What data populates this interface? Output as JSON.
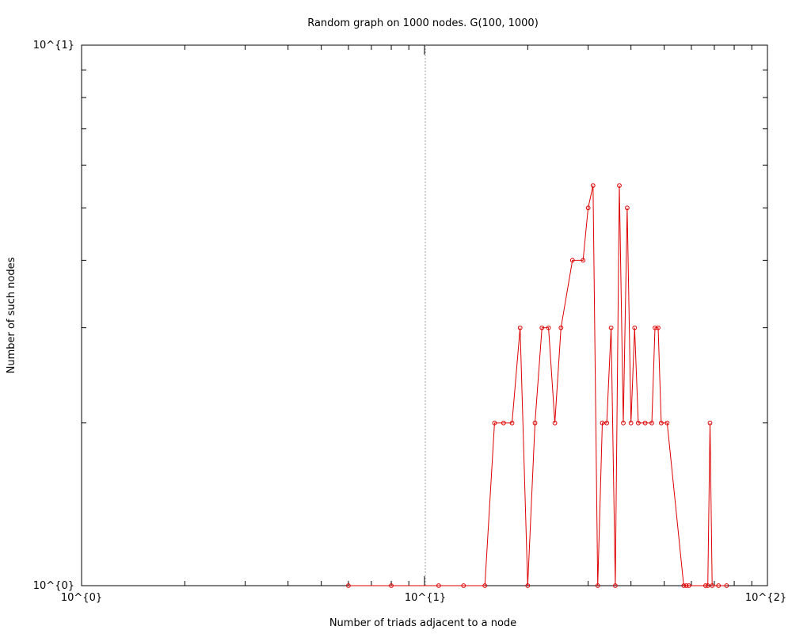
{
  "chart_data": {
    "type": "line",
    "title": "Random graph on 1000 nodes. G(100, 1000)",
    "xlabel": "Number of triads adjacent to a node",
    "ylabel": "Number of such nodes",
    "xscale": "log",
    "yscale": "log",
    "xlim": [
      1,
      100
    ],
    "ylim": [
      1,
      10
    ],
    "x_tick_labels": [
      "10^{0}",
      "10^{1}",
      "10^{2}"
    ],
    "y_tick_labels": [
      "10^{0}",
      "10^{1}"
    ],
    "grid": "vertical dotted line at x = 10",
    "series": [
      {
        "color": "#dd0000",
        "marker": "circle",
        "points": [
          [
            6,
            1
          ],
          [
            8,
            1
          ],
          [
            11,
            1
          ],
          [
            13,
            1
          ],
          [
            15,
            1
          ],
          [
            16,
            2
          ],
          [
            17,
            2
          ],
          [
            18,
            2
          ],
          [
            19,
            3
          ],
          [
            20,
            1
          ],
          [
            21,
            2
          ],
          [
            22,
            3
          ],
          [
            23,
            3
          ],
          [
            24,
            2
          ],
          [
            25,
            3
          ],
          [
            27,
            4
          ],
          [
            29,
            4
          ],
          [
            30,
            5
          ],
          [
            31,
            5.5
          ],
          [
            32,
            1
          ],
          [
            33,
            2
          ],
          [
            34,
            2
          ],
          [
            35,
            3
          ],
          [
            36,
            1
          ],
          [
            37,
            5.5
          ],
          [
            38,
            2
          ],
          [
            39,
            5
          ],
          [
            40,
            2
          ],
          [
            41,
            3
          ],
          [
            42,
            2
          ],
          [
            44,
            2
          ],
          [
            46,
            2
          ],
          [
            47,
            3
          ],
          [
            48,
            3
          ],
          [
            49,
            2
          ],
          [
            51,
            2
          ],
          [
            57,
            1
          ],
          [
            58,
            1
          ],
          [
            59,
            1
          ],
          [
            66,
            1
          ],
          [
            67,
            1
          ],
          [
            68,
            2
          ],
          [
            69,
            1
          ],
          [
            72,
            1
          ],
          [
            76,
            1
          ]
        ]
      }
    ]
  }
}
